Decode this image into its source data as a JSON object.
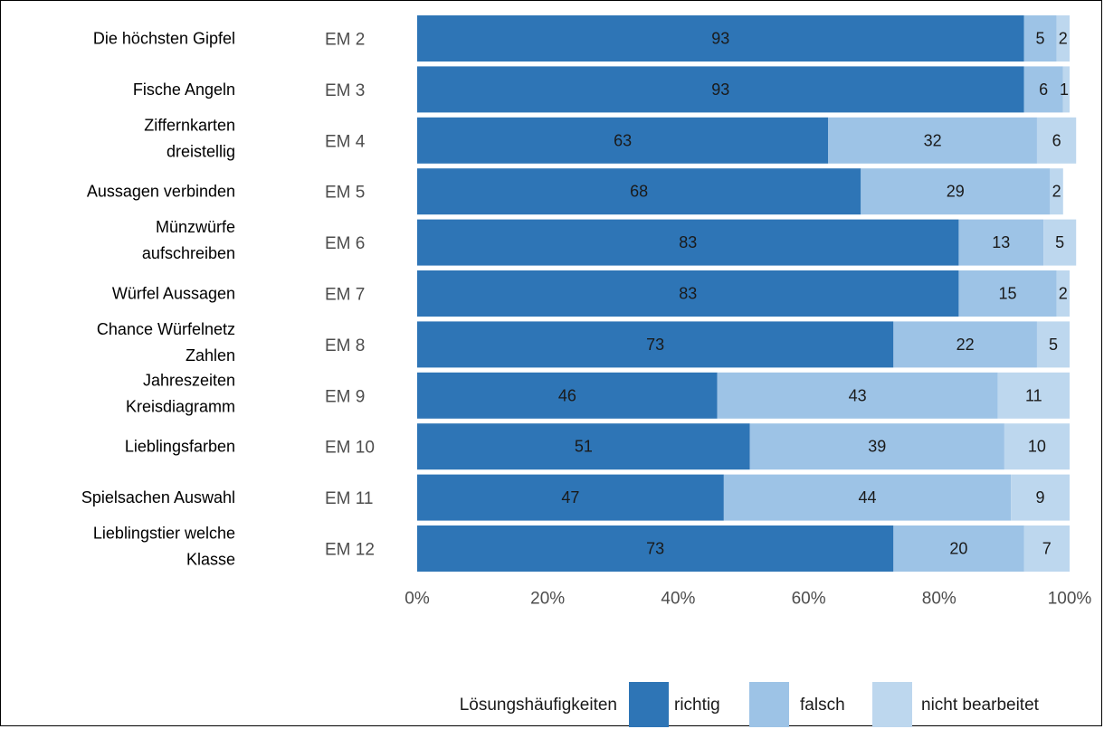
{
  "chart_data": {
    "type": "bar",
    "orientation": "horizontal",
    "stacked": true,
    "categories": [
      {
        "name": [
          "Die höchsten Gipfel"
        ],
        "code": "EM 2"
      },
      {
        "name": [
          "Fische Angeln"
        ],
        "code": "EM 3"
      },
      {
        "name": [
          "Ziffernkarten",
          "dreistellig"
        ],
        "code": "EM 4"
      },
      {
        "name": [
          "Aussagen verbinden"
        ],
        "code": "EM 5"
      },
      {
        "name": [
          "Münzwürfe",
          "aufschreiben"
        ],
        "code": "EM 6"
      },
      {
        "name": [
          "Würfel Aussagen"
        ],
        "code": "EM 7"
      },
      {
        "name": [
          "Chance Würfelnetz",
          "Zahlen"
        ],
        "code": "EM 8"
      },
      {
        "name": [
          "Jahreszeiten",
          "Kreisdiagramm"
        ],
        "code": "EM 9"
      },
      {
        "name": [
          "Lieblingsfarben"
        ],
        "code": "EM 10"
      },
      {
        "name": [
          "Spielsachen Auswahl"
        ],
        "code": "EM 11"
      },
      {
        "name": [
          "Lieblingstier welche",
          "Klasse"
        ],
        "code": "EM 12"
      }
    ],
    "series": [
      {
        "name": "richtig",
        "color": "#2e75b6",
        "values": [
          93,
          93,
          63,
          68,
          83,
          83,
          73,
          46,
          51,
          47,
          73
        ]
      },
      {
        "name": "falsch",
        "color": "#9dc3e6",
        "values": [
          5,
          6,
          32,
          29,
          13,
          15,
          22,
          43,
          39,
          44,
          20
        ]
      },
      {
        "name": "nicht bearbeitet",
        "color": "#bdd7ee",
        "values": [
          2,
          1,
          6,
          2,
          5,
          2,
          5,
          11,
          10,
          9,
          7
        ]
      }
    ],
    "xlim": [
      0,
      100
    ],
    "xticks": [
      "0%",
      "20%",
      "40%",
      "60%",
      "80%",
      "100%"
    ],
    "legend": {
      "title": "Lösungshäufigkeiten",
      "position": "bottom"
    },
    "grid": false
  }
}
